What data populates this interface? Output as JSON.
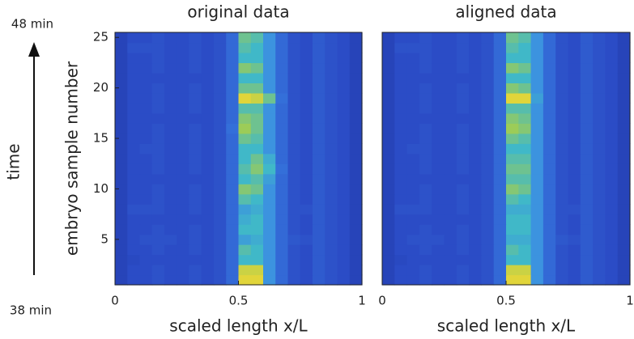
{
  "chart_data": [
    {
      "type": "heatmap",
      "title": "original data",
      "xlabel": "scaled length x/L",
      "ylabel": "embryo sample number",
      "time_label": "time",
      "time_end": "48 min",
      "time_start": "38 min",
      "xlim": [
        0,
        1
      ],
      "xticks": [
        0,
        0.5,
        1
      ],
      "ylim": [
        0.5,
        25.5
      ],
      "yticks": [
        5,
        10,
        15,
        20,
        25
      ],
      "clim": [
        0,
        1
      ],
      "colormap": [
        "#1a2a90",
        "#2b4cc6",
        "#3a86e6",
        "#40b8c8",
        "#9ccc58",
        "#f8d830"
      ],
      "xbins": [
        0,
        0.05,
        0.1,
        0.15,
        0.2,
        0.25,
        0.3,
        0.35,
        0.4,
        0.45,
        0.5,
        0.55,
        0.6,
        0.65,
        0.7,
        0.75,
        0.8,
        0.85,
        0.9,
        0.95,
        1
      ],
      "y": [
        1,
        2,
        3,
        4,
        5,
        6,
        7,
        8,
        9,
        10,
        11,
        12,
        13,
        14,
        15,
        16,
        17,
        18,
        19,
        20,
        21,
        22,
        23,
        24,
        25
      ],
      "values": [
        [
          0.15,
          0.2,
          0.2,
          0.22,
          0.2,
          0.2,
          0.22,
          0.2,
          0.22,
          0.3,
          0.95,
          0.95,
          0.45,
          0.3,
          0.22,
          0.2,
          0.25,
          0.22,
          0.2,
          0.15
        ],
        [
          0.15,
          0.2,
          0.2,
          0.22,
          0.2,
          0.2,
          0.22,
          0.2,
          0.22,
          0.3,
          0.9,
          0.9,
          0.45,
          0.3,
          0.22,
          0.2,
          0.25,
          0.22,
          0.2,
          0.15
        ],
        [
          0.15,
          0.18,
          0.2,
          0.2,
          0.2,
          0.2,
          0.2,
          0.2,
          0.22,
          0.3,
          0.6,
          0.6,
          0.45,
          0.3,
          0.22,
          0.2,
          0.25,
          0.22,
          0.2,
          0.15
        ],
        [
          0.15,
          0.2,
          0.2,
          0.22,
          0.2,
          0.2,
          0.22,
          0.2,
          0.22,
          0.3,
          0.65,
          0.6,
          0.45,
          0.3,
          0.22,
          0.2,
          0.25,
          0.22,
          0.2,
          0.15
        ],
        [
          0.15,
          0.2,
          0.22,
          0.22,
          0.22,
          0.2,
          0.22,
          0.2,
          0.22,
          0.3,
          0.5,
          0.55,
          0.45,
          0.3,
          0.24,
          0.22,
          0.25,
          0.22,
          0.2,
          0.15
        ],
        [
          0.15,
          0.2,
          0.2,
          0.22,
          0.2,
          0.2,
          0.22,
          0.2,
          0.22,
          0.3,
          0.6,
          0.6,
          0.45,
          0.3,
          0.22,
          0.2,
          0.25,
          0.22,
          0.2,
          0.15
        ],
        [
          0.15,
          0.2,
          0.2,
          0.2,
          0.2,
          0.2,
          0.2,
          0.2,
          0.22,
          0.3,
          0.55,
          0.6,
          0.45,
          0.3,
          0.22,
          0.2,
          0.25,
          0.22,
          0.2,
          0.15
        ],
        [
          0.15,
          0.22,
          0.22,
          0.22,
          0.2,
          0.2,
          0.22,
          0.2,
          0.22,
          0.3,
          0.5,
          0.55,
          0.45,
          0.3,
          0.22,
          0.22,
          0.25,
          0.22,
          0.2,
          0.15
        ],
        [
          0.15,
          0.2,
          0.2,
          0.22,
          0.2,
          0.2,
          0.22,
          0.2,
          0.22,
          0.3,
          0.65,
          0.6,
          0.45,
          0.3,
          0.22,
          0.2,
          0.25,
          0.22,
          0.2,
          0.15
        ],
        [
          0.15,
          0.2,
          0.2,
          0.22,
          0.2,
          0.2,
          0.22,
          0.2,
          0.22,
          0.3,
          0.75,
          0.7,
          0.45,
          0.3,
          0.22,
          0.2,
          0.25,
          0.22,
          0.2,
          0.15
        ],
        [
          0.15,
          0.2,
          0.2,
          0.2,
          0.2,
          0.2,
          0.2,
          0.2,
          0.22,
          0.3,
          0.6,
          0.65,
          0.5,
          0.3,
          0.22,
          0.2,
          0.25,
          0.22,
          0.2,
          0.15
        ],
        [
          0.15,
          0.2,
          0.2,
          0.22,
          0.2,
          0.2,
          0.22,
          0.2,
          0.22,
          0.3,
          0.65,
          0.75,
          0.6,
          0.32,
          0.22,
          0.2,
          0.25,
          0.22,
          0.2,
          0.15
        ],
        [
          0.15,
          0.2,
          0.2,
          0.22,
          0.2,
          0.2,
          0.22,
          0.2,
          0.22,
          0.3,
          0.6,
          0.7,
          0.55,
          0.3,
          0.22,
          0.2,
          0.25,
          0.22,
          0.2,
          0.15
        ],
        [
          0.15,
          0.2,
          0.22,
          0.22,
          0.2,
          0.2,
          0.22,
          0.2,
          0.22,
          0.3,
          0.6,
          0.6,
          0.45,
          0.3,
          0.22,
          0.2,
          0.25,
          0.22,
          0.2,
          0.15
        ],
        [
          0.15,
          0.2,
          0.2,
          0.22,
          0.2,
          0.2,
          0.22,
          0.2,
          0.22,
          0.3,
          0.7,
          0.65,
          0.45,
          0.3,
          0.22,
          0.2,
          0.25,
          0.22,
          0.2,
          0.15
        ],
        [
          0.15,
          0.2,
          0.2,
          0.22,
          0.2,
          0.2,
          0.22,
          0.2,
          0.22,
          0.32,
          0.8,
          0.7,
          0.45,
          0.3,
          0.22,
          0.2,
          0.25,
          0.22,
          0.2,
          0.15
        ],
        [
          0.15,
          0.2,
          0.2,
          0.2,
          0.2,
          0.2,
          0.2,
          0.2,
          0.22,
          0.3,
          0.75,
          0.7,
          0.45,
          0.3,
          0.22,
          0.2,
          0.25,
          0.22,
          0.2,
          0.15
        ],
        [
          0.15,
          0.2,
          0.2,
          0.22,
          0.2,
          0.2,
          0.22,
          0.2,
          0.22,
          0.3,
          0.65,
          0.65,
          0.45,
          0.3,
          0.22,
          0.2,
          0.25,
          0.22,
          0.2,
          0.15
        ],
        [
          0.15,
          0.2,
          0.2,
          0.22,
          0.2,
          0.2,
          0.22,
          0.2,
          0.22,
          0.3,
          0.95,
          0.9,
          0.7,
          0.32,
          0.22,
          0.2,
          0.25,
          0.22,
          0.2,
          0.15
        ],
        [
          0.15,
          0.2,
          0.2,
          0.22,
          0.2,
          0.2,
          0.22,
          0.2,
          0.22,
          0.3,
          0.7,
          0.7,
          0.45,
          0.3,
          0.22,
          0.2,
          0.25,
          0.22,
          0.2,
          0.15
        ],
        [
          0.15,
          0.2,
          0.2,
          0.2,
          0.2,
          0.2,
          0.2,
          0.2,
          0.22,
          0.3,
          0.6,
          0.6,
          0.45,
          0.3,
          0.22,
          0.2,
          0.25,
          0.22,
          0.2,
          0.15
        ],
        [
          0.15,
          0.2,
          0.2,
          0.22,
          0.2,
          0.2,
          0.22,
          0.2,
          0.22,
          0.3,
          0.75,
          0.7,
          0.45,
          0.3,
          0.22,
          0.2,
          0.25,
          0.22,
          0.2,
          0.15
        ],
        [
          0.15,
          0.2,
          0.2,
          0.22,
          0.2,
          0.2,
          0.22,
          0.2,
          0.22,
          0.3,
          0.6,
          0.6,
          0.45,
          0.3,
          0.22,
          0.2,
          0.25,
          0.22,
          0.2,
          0.15
        ],
        [
          0.15,
          0.22,
          0.22,
          0.22,
          0.2,
          0.2,
          0.22,
          0.2,
          0.22,
          0.3,
          0.65,
          0.6,
          0.45,
          0.3,
          0.22,
          0.2,
          0.25,
          0.22,
          0.2,
          0.15
        ],
        [
          0.15,
          0.2,
          0.2,
          0.22,
          0.2,
          0.2,
          0.22,
          0.2,
          0.22,
          0.3,
          0.7,
          0.65,
          0.45,
          0.3,
          0.22,
          0.2,
          0.25,
          0.22,
          0.2,
          0.15
        ]
      ]
    },
    {
      "type": "heatmap",
      "title": "aligned data",
      "xlabel": "scaled length x/L",
      "xlim": [
        0,
        1
      ],
      "xticks": [
        0,
        0.5,
        1
      ],
      "ylim": [
        0.5,
        25.5
      ],
      "clim": [
        0,
        1
      ],
      "colormap": [
        "#1a2a90",
        "#2b4cc6",
        "#3a86e6",
        "#40b8c8",
        "#9ccc58",
        "#f8d830"
      ],
      "xbins": [
        0,
        0.05,
        0.1,
        0.15,
        0.2,
        0.25,
        0.3,
        0.35,
        0.4,
        0.45,
        0.5,
        0.55,
        0.6,
        0.65,
        0.7,
        0.75,
        0.8,
        0.85,
        0.9,
        0.95,
        1
      ],
      "y": [
        1,
        2,
        3,
        4,
        5,
        6,
        7,
        8,
        9,
        10,
        11,
        12,
        13,
        14,
        15,
        16,
        17,
        18,
        19,
        20,
        21,
        22,
        23,
        24,
        25
      ],
      "values": [
        [
          0.15,
          0.2,
          0.2,
          0.22,
          0.2,
          0.2,
          0.22,
          0.2,
          0.22,
          0.3,
          0.95,
          0.95,
          0.45,
          0.3,
          0.22,
          0.2,
          0.25,
          0.22,
          0.2,
          0.15
        ],
        [
          0.15,
          0.2,
          0.2,
          0.22,
          0.2,
          0.2,
          0.22,
          0.2,
          0.22,
          0.3,
          0.9,
          0.9,
          0.45,
          0.3,
          0.22,
          0.2,
          0.25,
          0.22,
          0.2,
          0.15
        ],
        [
          0.15,
          0.18,
          0.2,
          0.2,
          0.2,
          0.2,
          0.2,
          0.2,
          0.22,
          0.3,
          0.6,
          0.6,
          0.45,
          0.3,
          0.22,
          0.2,
          0.25,
          0.22,
          0.2,
          0.15
        ],
        [
          0.15,
          0.2,
          0.2,
          0.22,
          0.2,
          0.2,
          0.22,
          0.2,
          0.22,
          0.3,
          0.65,
          0.6,
          0.45,
          0.3,
          0.22,
          0.2,
          0.25,
          0.22,
          0.2,
          0.15
        ],
        [
          0.15,
          0.2,
          0.22,
          0.22,
          0.22,
          0.2,
          0.22,
          0.2,
          0.22,
          0.3,
          0.55,
          0.55,
          0.45,
          0.3,
          0.24,
          0.22,
          0.25,
          0.22,
          0.2,
          0.15
        ],
        [
          0.15,
          0.2,
          0.2,
          0.22,
          0.2,
          0.2,
          0.22,
          0.2,
          0.22,
          0.3,
          0.6,
          0.6,
          0.45,
          0.3,
          0.22,
          0.2,
          0.25,
          0.22,
          0.2,
          0.15
        ],
        [
          0.15,
          0.2,
          0.2,
          0.2,
          0.2,
          0.2,
          0.2,
          0.2,
          0.22,
          0.3,
          0.6,
          0.6,
          0.45,
          0.3,
          0.22,
          0.2,
          0.25,
          0.22,
          0.2,
          0.15
        ],
        [
          0.15,
          0.22,
          0.22,
          0.22,
          0.2,
          0.2,
          0.22,
          0.2,
          0.22,
          0.3,
          0.55,
          0.55,
          0.45,
          0.3,
          0.22,
          0.22,
          0.25,
          0.22,
          0.2,
          0.15
        ],
        [
          0.15,
          0.2,
          0.2,
          0.22,
          0.2,
          0.2,
          0.22,
          0.2,
          0.22,
          0.3,
          0.65,
          0.6,
          0.45,
          0.3,
          0.22,
          0.2,
          0.25,
          0.22,
          0.2,
          0.15
        ],
        [
          0.15,
          0.2,
          0.2,
          0.22,
          0.2,
          0.2,
          0.22,
          0.2,
          0.22,
          0.3,
          0.75,
          0.7,
          0.45,
          0.3,
          0.22,
          0.2,
          0.25,
          0.22,
          0.2,
          0.15
        ],
        [
          0.15,
          0.2,
          0.2,
          0.2,
          0.2,
          0.2,
          0.2,
          0.2,
          0.22,
          0.3,
          0.65,
          0.65,
          0.45,
          0.3,
          0.22,
          0.2,
          0.25,
          0.22,
          0.2,
          0.15
        ],
        [
          0.15,
          0.2,
          0.2,
          0.22,
          0.2,
          0.2,
          0.22,
          0.2,
          0.22,
          0.3,
          0.7,
          0.7,
          0.45,
          0.3,
          0.22,
          0.2,
          0.25,
          0.22,
          0.2,
          0.15
        ],
        [
          0.15,
          0.2,
          0.2,
          0.22,
          0.2,
          0.2,
          0.22,
          0.2,
          0.22,
          0.3,
          0.65,
          0.65,
          0.45,
          0.3,
          0.22,
          0.2,
          0.25,
          0.22,
          0.2,
          0.15
        ],
        [
          0.15,
          0.2,
          0.22,
          0.22,
          0.2,
          0.2,
          0.22,
          0.2,
          0.22,
          0.3,
          0.6,
          0.6,
          0.45,
          0.3,
          0.22,
          0.2,
          0.25,
          0.22,
          0.2,
          0.15
        ],
        [
          0.15,
          0.2,
          0.2,
          0.22,
          0.2,
          0.2,
          0.22,
          0.2,
          0.22,
          0.3,
          0.7,
          0.65,
          0.45,
          0.3,
          0.22,
          0.2,
          0.25,
          0.22,
          0.2,
          0.15
        ],
        [
          0.15,
          0.2,
          0.2,
          0.22,
          0.2,
          0.2,
          0.22,
          0.2,
          0.22,
          0.3,
          0.8,
          0.75,
          0.45,
          0.3,
          0.22,
          0.2,
          0.25,
          0.22,
          0.2,
          0.15
        ],
        [
          0.15,
          0.2,
          0.2,
          0.2,
          0.2,
          0.2,
          0.2,
          0.2,
          0.22,
          0.3,
          0.75,
          0.7,
          0.45,
          0.3,
          0.22,
          0.2,
          0.25,
          0.22,
          0.2,
          0.15
        ],
        [
          0.15,
          0.2,
          0.2,
          0.22,
          0.2,
          0.2,
          0.22,
          0.2,
          0.22,
          0.3,
          0.65,
          0.65,
          0.45,
          0.3,
          0.22,
          0.2,
          0.25,
          0.22,
          0.2,
          0.15
        ],
        [
          0.15,
          0.2,
          0.2,
          0.22,
          0.2,
          0.2,
          0.22,
          0.2,
          0.22,
          0.3,
          0.95,
          0.95,
          0.5,
          0.3,
          0.22,
          0.2,
          0.25,
          0.22,
          0.2,
          0.15
        ],
        [
          0.15,
          0.2,
          0.2,
          0.22,
          0.2,
          0.2,
          0.22,
          0.2,
          0.22,
          0.3,
          0.75,
          0.7,
          0.45,
          0.3,
          0.22,
          0.2,
          0.25,
          0.22,
          0.2,
          0.15
        ],
        [
          0.15,
          0.2,
          0.2,
          0.2,
          0.2,
          0.2,
          0.2,
          0.2,
          0.22,
          0.3,
          0.6,
          0.6,
          0.45,
          0.3,
          0.22,
          0.2,
          0.25,
          0.22,
          0.2,
          0.15
        ],
        [
          0.15,
          0.2,
          0.2,
          0.22,
          0.2,
          0.2,
          0.22,
          0.2,
          0.22,
          0.3,
          0.75,
          0.7,
          0.45,
          0.3,
          0.22,
          0.2,
          0.25,
          0.22,
          0.2,
          0.15
        ],
        [
          0.15,
          0.2,
          0.2,
          0.22,
          0.2,
          0.2,
          0.22,
          0.2,
          0.22,
          0.3,
          0.6,
          0.6,
          0.45,
          0.3,
          0.22,
          0.2,
          0.25,
          0.22,
          0.2,
          0.15
        ],
        [
          0.15,
          0.22,
          0.22,
          0.22,
          0.2,
          0.2,
          0.22,
          0.2,
          0.22,
          0.3,
          0.65,
          0.6,
          0.45,
          0.3,
          0.22,
          0.2,
          0.25,
          0.22,
          0.2,
          0.15
        ],
        [
          0.15,
          0.2,
          0.2,
          0.22,
          0.2,
          0.2,
          0.22,
          0.2,
          0.22,
          0.3,
          0.7,
          0.65,
          0.45,
          0.3,
          0.22,
          0.2,
          0.25,
          0.22,
          0.2,
          0.15
        ]
      ]
    }
  ]
}
